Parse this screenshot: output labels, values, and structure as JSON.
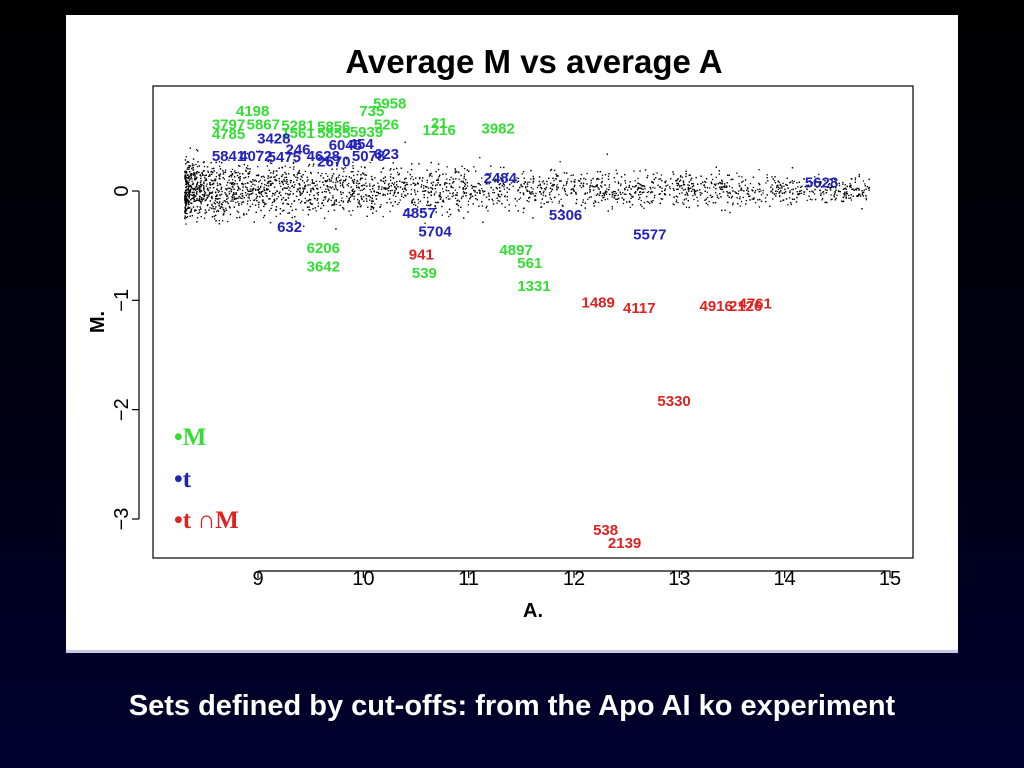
{
  "caption": "Sets defined by cut-offs: from the Apo AI ko experiment",
  "legend": {
    "m": {
      "bullet": "•",
      "text": "M",
      "color": "#33dd33"
    },
    "t": {
      "bullet": "•",
      "text": "t",
      "color": "#2222bb"
    },
    "tm": {
      "bullet": "•",
      "text": "t ∩M",
      "color": "#dd2222"
    }
  },
  "chart_data": {
    "type": "scatter",
    "title": "Average M vs average A",
    "xlabel": "A.",
    "ylabel": "M.",
    "xlim": [
      8.0,
      15.2
    ],
    "ylim": [
      -3.35,
      0.98
    ],
    "xticks": [
      9,
      10,
      11,
      12,
      13,
      14,
      15
    ],
    "yticks": [
      0,
      -1,
      -2,
      -3
    ],
    "grid": false,
    "legend_position": "bottom-left",
    "background_cloud": {
      "color": "#000000",
      "description_points": "dense cloud of gene points, M near 0, A from 8.3 to 14.8"
    },
    "series": [
      {
        "name": "M",
        "color": "#33dd33",
        "points": [
          {
            "label": "5958",
            "x": 10.25,
            "y": 0.8
          },
          {
            "label": "4198",
            "x": 8.95,
            "y": 0.73
          },
          {
            "label": "735",
            "x": 10.08,
            "y": 0.73
          },
          {
            "label": "3797",
            "x": 8.72,
            "y": 0.61
          },
          {
            "label": "5867",
            "x": 9.05,
            "y": 0.61
          },
          {
            "label": "5281",
            "x": 9.38,
            "y": 0.6
          },
          {
            "label": "5856",
            "x": 9.72,
            "y": 0.59
          },
          {
            "label": "526",
            "x": 10.22,
            "y": 0.61
          },
          {
            "label": "21",
            "x": 10.72,
            "y": 0.62
          },
          {
            "label": "4785",
            "x": 8.72,
            "y": 0.52
          },
          {
            "label": "1561",
            "x": 9.38,
            "y": 0.53
          },
          {
            "label": "5855",
            "x": 9.72,
            "y": 0.53
          },
          {
            "label": "5939",
            "x": 10.03,
            "y": 0.54
          },
          {
            "label": "1216",
            "x": 10.72,
            "y": 0.56
          },
          {
            "label": "3982",
            "x": 11.28,
            "y": 0.57
          },
          {
            "label": "6206",
            "x": 9.62,
            "y": -0.52
          },
          {
            "label": "3642",
            "x": 9.62,
            "y": -0.69
          },
          {
            "label": "539",
            "x": 10.58,
            "y": -0.75
          },
          {
            "label": "4897",
            "x": 11.45,
            "y": -0.54
          },
          {
            "label": "561",
            "x": 11.58,
            "y": -0.66
          },
          {
            "label": "1331",
            "x": 11.62,
            "y": -0.87
          }
        ]
      },
      {
        "name": "t",
        "color": "#2222bb",
        "points": [
          {
            "label": "3428",
            "x": 9.15,
            "y": 0.48
          },
          {
            "label": "6045",
            "x": 9.83,
            "y": 0.42
          },
          {
            "label": "454",
            "x": 9.98,
            "y": 0.43
          },
          {
            "label": "5841",
            "x": 8.72,
            "y": 0.32
          },
          {
            "label": "4072",
            "x": 8.98,
            "y": 0.32
          },
          {
            "label": "5475",
            "x": 9.25,
            "y": 0.31
          },
          {
            "label": "246",
            "x": 9.38,
            "y": 0.38
          },
          {
            "label": "4628",
            "x": 9.62,
            "y": 0.32
          },
          {
            "label": "2670",
            "x": 9.72,
            "y": 0.27
          },
          {
            "label": "5078",
            "x": 10.05,
            "y": 0.32
          },
          {
            "label": "623",
            "x": 10.22,
            "y": 0.34
          },
          {
            "label": "2484",
            "x": 11.3,
            "y": 0.12
          },
          {
            "label": "5628",
            "x": 14.35,
            "y": 0.08
          },
          {
            "label": "4857",
            "x": 10.53,
            "y": -0.2
          },
          {
            "label": "5306",
            "x": 11.92,
            "y": -0.22
          },
          {
            "label": "5704",
            "x": 10.68,
            "y": -0.37
          },
          {
            "label": "632",
            "x": 9.3,
            "y": -0.33
          },
          {
            "label": "5577",
            "x": 12.72,
            "y": -0.4
          }
        ]
      },
      {
        "name": "t ∩M",
        "color": "#dd2222",
        "points": [
          {
            "label": "941",
            "x": 10.55,
            "y": -0.58
          },
          {
            "label": "1489",
            "x": 12.23,
            "y": -1.02
          },
          {
            "label": "4117",
            "x": 12.62,
            "y": -1.07
          },
          {
            "label": "4916",
            "x": 13.35,
            "y": -1.05
          },
          {
            "label": "2126",
            "x": 13.63,
            "y": -1.05
          },
          {
            "label": "4761",
            "x": 13.72,
            "y": -1.03
          },
          {
            "label": "5330",
            "x": 12.95,
            "y": -1.92
          },
          {
            "label": "538",
            "x": 12.3,
            "y": -3.1
          },
          {
            "label": "2139",
            "x": 12.48,
            "y": -3.22
          }
        ]
      }
    ]
  }
}
